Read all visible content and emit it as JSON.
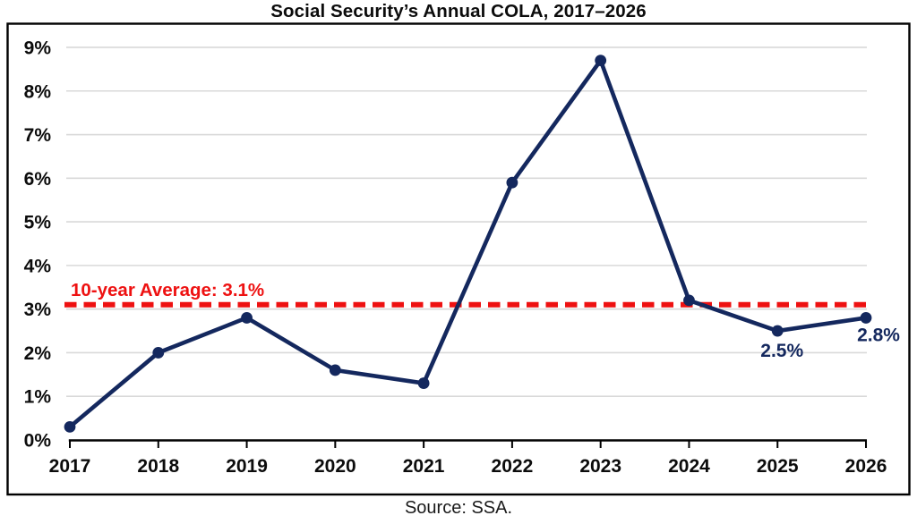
{
  "chart_data": {
    "type": "line",
    "title": "Social Security’s Annual COLA, 2017–2026",
    "categories": [
      "2017",
      "2018",
      "2019",
      "2020",
      "2021",
      "2022",
      "2023",
      "2024",
      "2025",
      "2026"
    ],
    "series": [
      {
        "name": "Annual COLA",
        "values": [
          0.3,
          2.0,
          2.8,
          1.6,
          1.3,
          5.9,
          8.7,
          3.2,
          2.5,
          2.8
        ]
      }
    ],
    "point_labels": [
      {
        "index": 8,
        "text": "2.5%"
      },
      {
        "index": 9,
        "text": "2.8%"
      }
    ],
    "reference_line": {
      "value": 3.1,
      "label": "10-year Average: 3.1%"
    },
    "yticks": [
      "0%",
      "1%",
      "2%",
      "3%",
      "4%",
      "5%",
      "6%",
      "7%",
      "8%",
      "9%"
    ],
    "ylim": [
      0,
      9.5
    ],
    "xlabel": "",
    "ylabel": "",
    "grid": true,
    "legend": "none",
    "source_note": "Source: SSA.",
    "colors": {
      "line": "#14285e",
      "marker": "#14285e",
      "reference": "#ee1111",
      "grid": "#d9d9d9",
      "axis": "#000000",
      "border": "#000000",
      "point_label": "#14285e"
    }
  }
}
